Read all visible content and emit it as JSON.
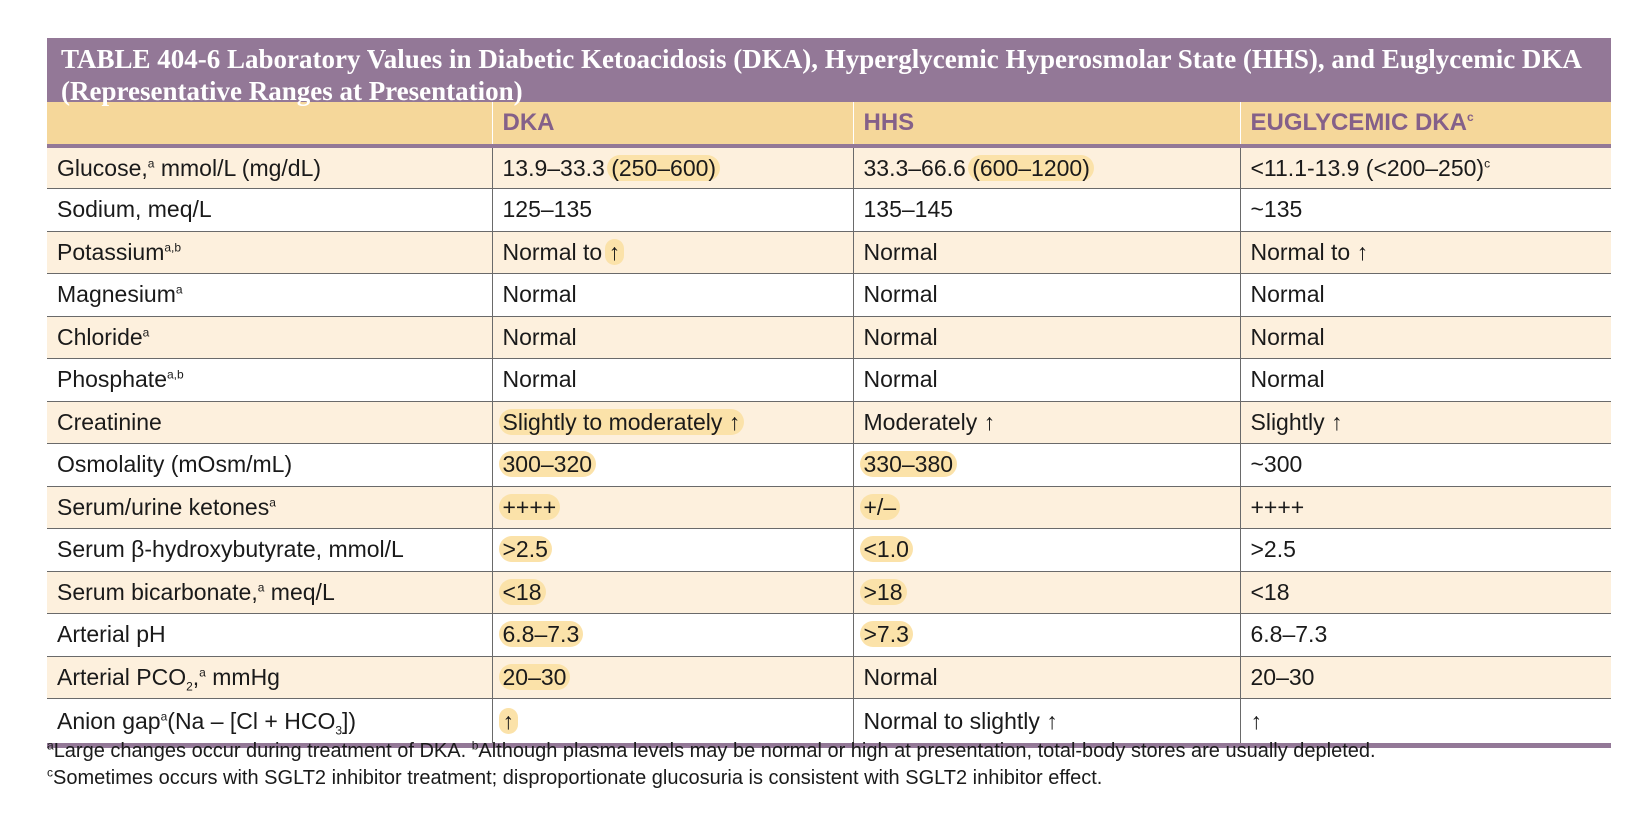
{
  "title": "TABLE 404-6  Laboratory Values in Diabetic Ketoacidosis (DKA), Hyperglycemic Hyperosmolar State (HHS), and Euglycemic DKA (Representative Ranges at Presentation)",
  "headers": [
    "",
    "DKA",
    "HHS",
    "EUGLYCEMIC DKA"
  ],
  "header_mark_euglycemic": "c",
  "rows": [
    {
      "label": "Glucose,",
      "mark": "a",
      "label_rest": " mmol/L (mg/dL)",
      "dka": "13.9–33.3",
      "dka_hl": "(250–600)",
      "hhs": "33.3–66.6",
      "hhs_hl": "(600–1200)",
      "eug": "<11.1-13.9 (<200–250)",
      "eug_mark": "c"
    },
    {
      "label": "Sodium, meq/L",
      "dka": "125–135",
      "hhs": "135–145",
      "eug": "~135"
    },
    {
      "label": "Potassium",
      "mark": "a,b",
      "dka": "Normal to",
      "dka_hl": "↑",
      "hhs": "Normal",
      "eug": "Normal to ↑"
    },
    {
      "label": "Magnesium",
      "mark": "a",
      "dka": "Normal",
      "hhs": "Normal",
      "eug": "Normal"
    },
    {
      "label": "Chloride",
      "mark": "a",
      "dka": "Normal",
      "hhs": "Normal",
      "eug": "Normal"
    },
    {
      "label": "Phosphate",
      "mark": "a,b",
      "dka": "Normal",
      "hhs": "Normal",
      "eug": "Normal"
    },
    {
      "label": "Creatinine",
      "dka_hl": "Slightly to moderately ↑",
      "hhs": "Moderately ↑",
      "eug": "Slightly ↑"
    },
    {
      "label": "Osmolality (mOsm/mL)",
      "dka_hl": "300–320",
      "hhs_hl": "330–380",
      "eug": "~300"
    },
    {
      "label": "Serum/urine ketones",
      "mark": "a",
      "dka_hl": "++++",
      "hhs_hl": "+/–",
      "eug": "++++"
    },
    {
      "label": "Serum β-hydroxybutyrate, mmol/L",
      "dka_hl": ">2.5",
      "hhs_hl": "<1.0",
      "eug": ">2.5"
    },
    {
      "label": "Serum bicarbonate,",
      "mark": "a",
      "label_rest": " meq/L",
      "dka_hl": "<18",
      "hhs_hl": ">18",
      "eug": "<18"
    },
    {
      "label": "Arterial pH",
      "dka_hl": "6.8–7.3",
      "hhs_hl": ">7.3",
      "eug": "6.8–7.3"
    },
    {
      "label": "Arterial PCO",
      "sub": "2",
      "label_rest2": ",",
      "mark": "a",
      "label_rest": " mmHg",
      "dka_hl": "20–30",
      "hhs": "Normal",
      "eug": "20–30"
    },
    {
      "label": "Anion gap",
      "mark": "a",
      "label_rest": "(Na – [Cl + HCO",
      "sub2": "3",
      "label_end": "])",
      "dka_hl": "↑",
      "hhs": "Normal to slightly ↑",
      "eug": "↑"
    }
  ],
  "footnotes": [
    {
      "mark": "a",
      "text": "Large changes occur during treatment of DKA. "
    },
    {
      "mark": "b",
      "text": "Although plasma levels may be normal or high at presentation, total-body stores are usually depleted."
    },
    {
      "mark": "c",
      "text": "Sometimes occurs with SGLT2 inhibitor treatment; disproportionate glucosuria is consistent with SGLT2 inhibitor effect."
    }
  ]
}
